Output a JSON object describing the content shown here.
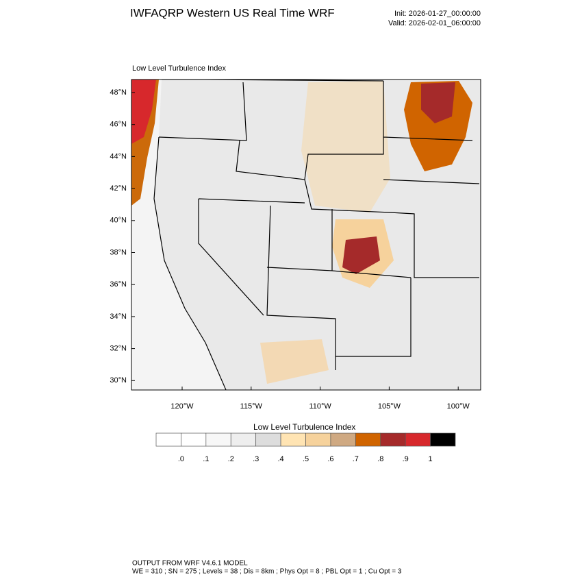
{
  "header": {
    "title": "IWFAQRP Western US Real Time WRF",
    "init": "Init: 2026-01-27_00:00:00",
    "valid": "Valid: 2026-02-01_06:00:00"
  },
  "map": {
    "title": "Low Level Turbulence Index",
    "lat_labels": [
      "48°N",
      "46°N",
      "44°N",
      "42°N",
      "40°N",
      "38°N",
      "36°N",
      "34°N",
      "32°N",
      "30°N"
    ],
    "lon_labels": [
      "120°W",
      "115°W",
      "110°W",
      "105°W",
      "100°W"
    ]
  },
  "colorbar": {
    "title": "Low Level Turbulence Index",
    "colors": [
      "#ffffff",
      "#f7f7f7",
      "#eeeeee",
      "#dddddd",
      "#ffe4b3",
      "#f6d29c",
      "#cfa982",
      "#d06400",
      "#a52a2a",
      "#d7282c",
      "#000000"
    ],
    "labels": [
      ".0",
      ".1",
      ".2",
      ".3",
      ".4",
      ".5",
      ".6",
      ".7",
      ".8",
      ".9",
      "1"
    ]
  },
  "footer": {
    "line1": "OUTPUT FROM WRF V4.6.1 MODEL",
    "line2": "WE = 310 ; SN = 275 ; Levels = 38 ; Dis = 8km ; Phys Opt = 8 ; PBL Opt = 1 ; Cu Opt = 3"
  }
}
